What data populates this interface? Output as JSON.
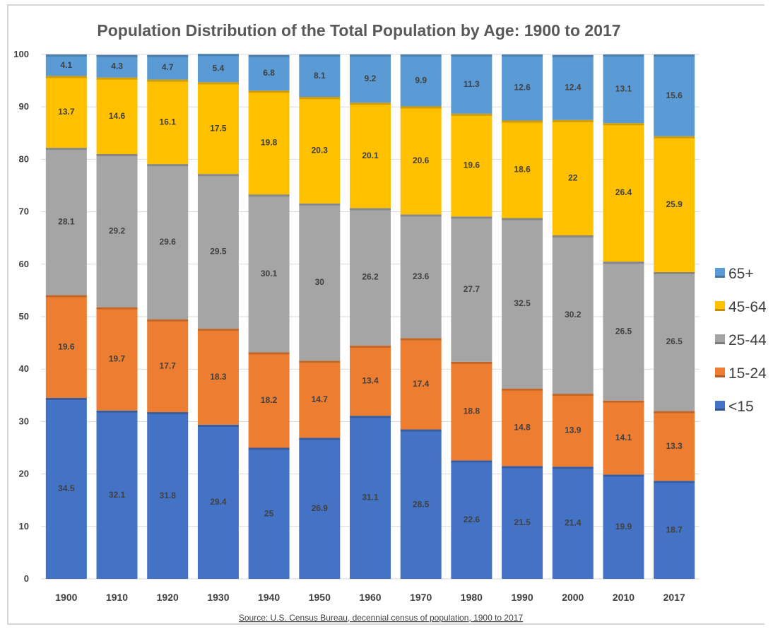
{
  "chart_data": {
    "type": "bar",
    "stacked": true,
    "title": "Population Distribution of the Total Population by Age: 1900 to 2017",
    "source": "Source: U.S. Census Bureau, decennial census of population, 1900 to 2017",
    "categories": [
      "1900",
      "1910",
      "1920",
      "1930",
      "1940",
      "1950",
      "1960",
      "1970",
      "1980",
      "1990",
      "2000",
      "2010",
      "2017"
    ],
    "ylim": [
      0,
      100
    ],
    "yticks": [
      0,
      10,
      20,
      30,
      40,
      50,
      60,
      70,
      80,
      90,
      100
    ],
    "grid": true,
    "legend_position": "right",
    "series": [
      {
        "name": "<15",
        "color": "#4472c4",
        "values": [
          34.5,
          32.1,
          31.8,
          29.4,
          25,
          26.9,
          31.1,
          28.5,
          22.6,
          21.5,
          21.4,
          19.9,
          18.7
        ]
      },
      {
        "name": "15-24",
        "color": "#ed7d31",
        "values": [
          19.6,
          19.7,
          17.7,
          18.3,
          18.2,
          14.7,
          13.4,
          17.4,
          18.8,
          14.8,
          13.9,
          14.1,
          13.3
        ]
      },
      {
        "name": "25-44",
        "color": "#a5a5a5",
        "values": [
          28.1,
          29.2,
          29.6,
          29.5,
          30.1,
          30,
          26.2,
          23.6,
          27.7,
          32.5,
          30.2,
          26.5,
          26.5
        ]
      },
      {
        "name": "45-64",
        "color": "#ffc000",
        "values": [
          13.7,
          14.6,
          16.1,
          17.5,
          19.8,
          20.3,
          20.1,
          20.6,
          19.6,
          18.6,
          22,
          26.4,
          25.9
        ]
      },
      {
        "name": "65+",
        "color": "#5b9bd5",
        "values": [
          4.1,
          4.3,
          4.7,
          5.4,
          6.8,
          8.1,
          9.2,
          9.9,
          11.3,
          12.6,
          12.4,
          13.1,
          15.6
        ]
      }
    ],
    "legend_order": [
      "65+",
      "45-64",
      "25-44",
      "15-24",
      "<15"
    ]
  }
}
